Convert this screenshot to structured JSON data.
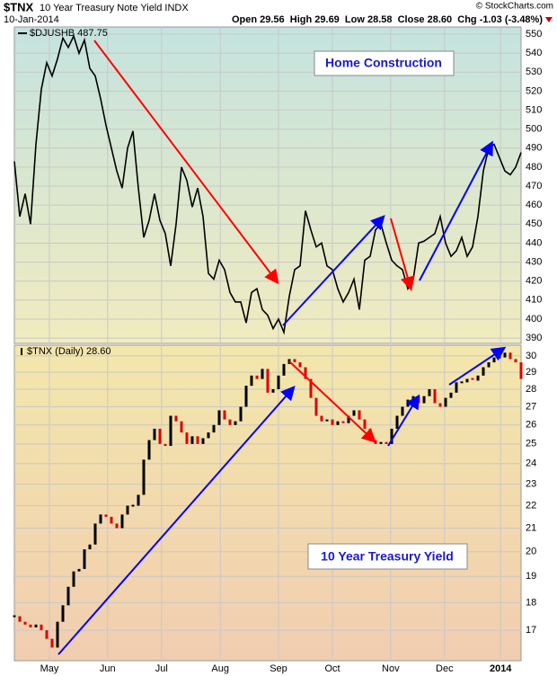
{
  "header": {
    "symbol": "$TNX",
    "name": "10 Year Treasury Note Yield INDX",
    "date": "10-Jan-2014",
    "quote": "Open 29.56  High 29.69  Low 28.58  Close 28.60  Chg -1.03 (-3.48%)",
    "credit": "© StockCharts.com"
  },
  "chart_data": [
    {
      "type": "line",
      "legend": "$DJUSHB 487.75",
      "annotation": "Home Construction",
      "color": "#000000",
      "xlim": [
        0,
        94
      ],
      "ylim": [
        387.2,
        553.8
      ],
      "yticks": [
        390,
        400,
        410,
        420,
        430,
        440,
        450,
        460,
        470,
        480,
        490,
        500,
        510,
        520,
        530,
        540,
        550
      ],
      "grid": true,
      "values": [
        483,
        454,
        466,
        450,
        492,
        521,
        535,
        528,
        537,
        548,
        543,
        549,
        540,
        547,
        532,
        528,
        516,
        502,
        490,
        478,
        469,
        490,
        499,
        469,
        443,
        452,
        466,
        452,
        445,
        428,
        450,
        480,
        473,
        459,
        469,
        454,
        424,
        421,
        431,
        426,
        414,
        409,
        409,
        398,
        414,
        416,
        405,
        402,
        395,
        400,
        393,
        412,
        426,
        428,
        457,
        447,
        438,
        440,
        428,
        426,
        416,
        409,
        414,
        421,
        405,
        431,
        433,
        447,
        450,
        440,
        431,
        428,
        426,
        416,
        421,
        440,
        441,
        443,
        445,
        454,
        440,
        433,
        436,
        443,
        433,
        438,
        454,
        478,
        490,
        492,
        485,
        478,
        476,
        480,
        487.75
      ]
    },
    {
      "type": "bar",
      "legend": "$TNX (Daily) 28.60",
      "annotation": "10 Year Treasury Yield",
      "up_color": "#000000",
      "down_color": "#e00000",
      "xlim": [
        0,
        94
      ],
      "ylim": [
        15.96,
        30.67
      ],
      "yscale": "log",
      "yticks": [
        17,
        18,
        19,
        20,
        21,
        22,
        23,
        24,
        25,
        26,
        27,
        28,
        29,
        30
      ],
      "grid": true,
      "xticks": [
        {
          "value": 6.5,
          "label": "May"
        },
        {
          "value": 17.3,
          "label": "Jun"
        },
        {
          "value": 27.3,
          "label": "Jul"
        },
        {
          "value": 38.2,
          "label": "Aug"
        },
        {
          "value": 49,
          "label": "Sep"
        },
        {
          "value": 59,
          "label": "Oct"
        },
        {
          "value": 69.8,
          "label": "Nov"
        },
        {
          "value": 79.8,
          "label": "Dec"
        },
        {
          "value": 90.2,
          "label": "2014"
        }
      ],
      "values": [
        17.5,
        17.3,
        17.2,
        17.1,
        17.2,
        17.0,
        16.7,
        16.4,
        17.3,
        17.9,
        18.6,
        19.2,
        19.3,
        20.1,
        20.3,
        21.2,
        21.6,
        21.5,
        21.2,
        21.0,
        21.6,
        22.0,
        22.0,
        22.5,
        24.2,
        25.2,
        25.8,
        25.0,
        24.9,
        26.5,
        26.2,
        25.6,
        25.0,
        25.4,
        25.0,
        25.3,
        25.6,
        26.0,
        26.8,
        26.3,
        26.0,
        26.2,
        27.0,
        28.2,
        28.8,
        28.6,
        29.2,
        27.8,
        28.0,
        28.8,
        29.5,
        29.8,
        29.6,
        29.3,
        28.6,
        27.5,
        26.5,
        26.2,
        26.3,
        26.0,
        26.2,
        26.1,
        26.5,
        26.8,
        26.3,
        25.8,
        25.2,
        25.0,
        25.1,
        25.0,
        25.8,
        26.5,
        27.0,
        27.4,
        27.6,
        27.2,
        27.6,
        28.0,
        27.2,
        27.0,
        27.5,
        27.8,
        28.4,
        28.4,
        28.6,
        28.5,
        28.8,
        29.3,
        29.6,
        29.9,
        29.9,
        30.2,
        29.8,
        29.6,
        28.6
      ]
    }
  ]
}
